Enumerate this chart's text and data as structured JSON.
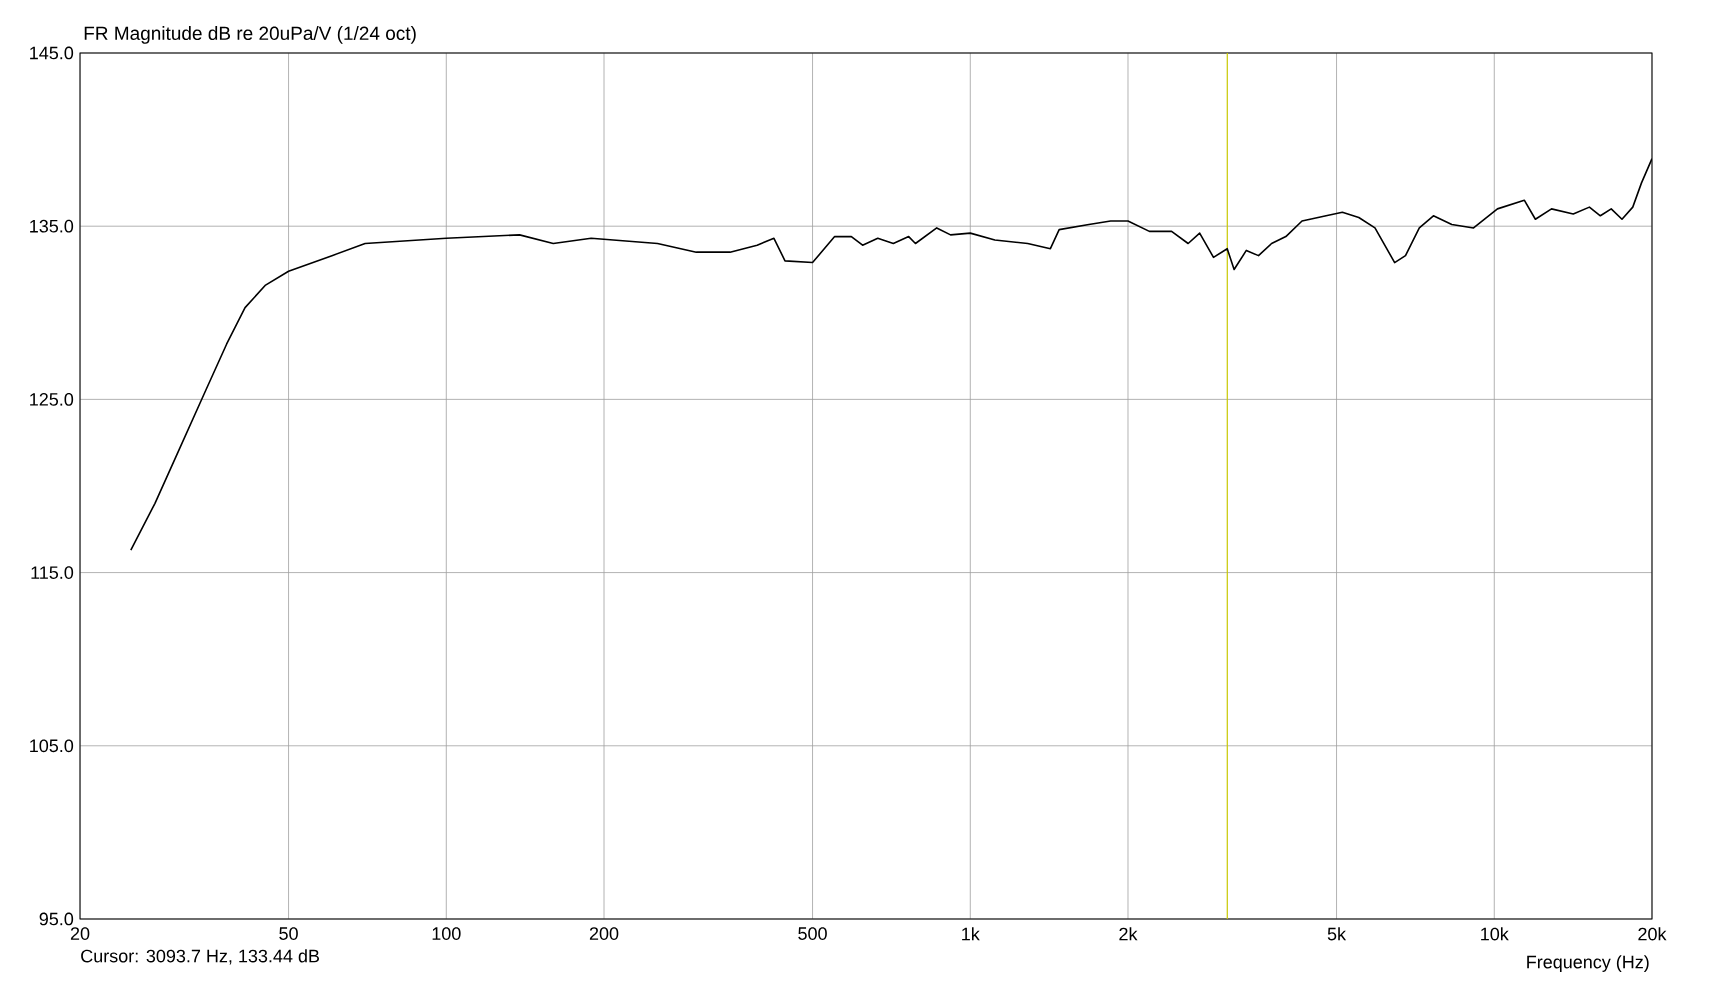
{
  "chart_data": {
    "type": "line",
    "title": "FR Magnitude dB re 20uPa/V (1/24 oct)",
    "xlabel": "Frequency (Hz)",
    "annotations": [
      "Cursor: 3093.7 Hz, 133.44 dB"
    ],
    "log": "x",
    "grid": true,
    "marker": "none",
    "line_style": "solid",
    "xlim": [
      20,
      20000
    ],
    "ylim": [
      95,
      145
    ],
    "xticks": [
      20,
      50,
      100,
      200,
      500,
      {
        "value": 1000,
        "label": "1k"
      },
      {
        "value": 2000,
        "label": "2k"
      },
      {
        "value": 5000,
        "label": "5k"
      },
      {
        "value": 10000,
        "label": "10k"
      },
      {
        "value": 20000,
        "label": "20k"
      }
    ],
    "yticks": [
      {
        "value": 95,
        "label": "95.0"
      },
      {
        "value": 105,
        "label": "105.0"
      },
      {
        "value": 115,
        "label": "115.0"
      },
      {
        "value": 125,
        "label": "125.0"
      },
      {
        "value": 135,
        "label": "135.0"
      },
      {
        "value": 145,
        "label": "145.0"
      }
    ],
    "ref_lines": [
      {
        "axis": "x",
        "value": 3093.7,
        "color": "#c8c800"
      }
    ],
    "x": [
      25,
      27.8,
      30.7,
      34.6,
      38.1,
      41.3,
      45.2,
      50,
      60.5,
      70,
      100,
      138,
      160,
      189,
      253,
      300,
      348,
      392,
      422,
      443,
      500,
      551,
      593,
      623,
      666,
      713,
      763,
      786,
      863,
      917,
      1000,
      1114,
      1287,
      1422,
      1478,
      1684,
      1853,
      2000,
      2197,
      2422,
      2605,
      2740,
      2912,
      3093,
      3188,
      3364,
      3549,
      3759,
      4002,
      4296,
      4776,
      5130,
      5514,
      5920,
      6455,
      6770,
      7195,
      7655,
      8297,
      9130,
      10140,
      11410,
      11980,
      12860,
      14150,
      15190,
      15940,
      16720,
      17530,
      18380,
      19100,
      20000
    ],
    "series": [
      {
        "color": "#000000",
        "values": [
          116.3,
          119.0,
          121.9,
          125.4,
          128.2,
          130.3,
          131.6,
          132.4,
          133.3,
          134.0,
          134.3,
          134.5,
          134.0,
          134.3,
          134.0,
          133.5,
          133.5,
          133.9,
          134.3,
          133.0,
          132.9,
          134.4,
          134.4,
          133.9,
          134.3,
          134.0,
          134.4,
          134.0,
          134.9,
          134.5,
          134.6,
          134.2,
          134.0,
          133.7,
          134.8,
          135.1,
          135.3,
          135.3,
          134.7,
          134.7,
          134.0,
          134.6,
          133.2,
          133.7,
          132.5,
          133.6,
          133.3,
          134.0,
          134.4,
          135.3,
          135.6,
          135.8,
          135.5,
          134.9,
          132.9,
          133.3,
          134.9,
          135.6,
          135.1,
          134.9,
          136.0,
          136.5,
          135.4,
          136.0,
          135.7,
          136.1,
          135.6,
          136.0,
          135.4,
          136.1,
          137.5,
          138.9
        ]
      }
    ]
  }
}
